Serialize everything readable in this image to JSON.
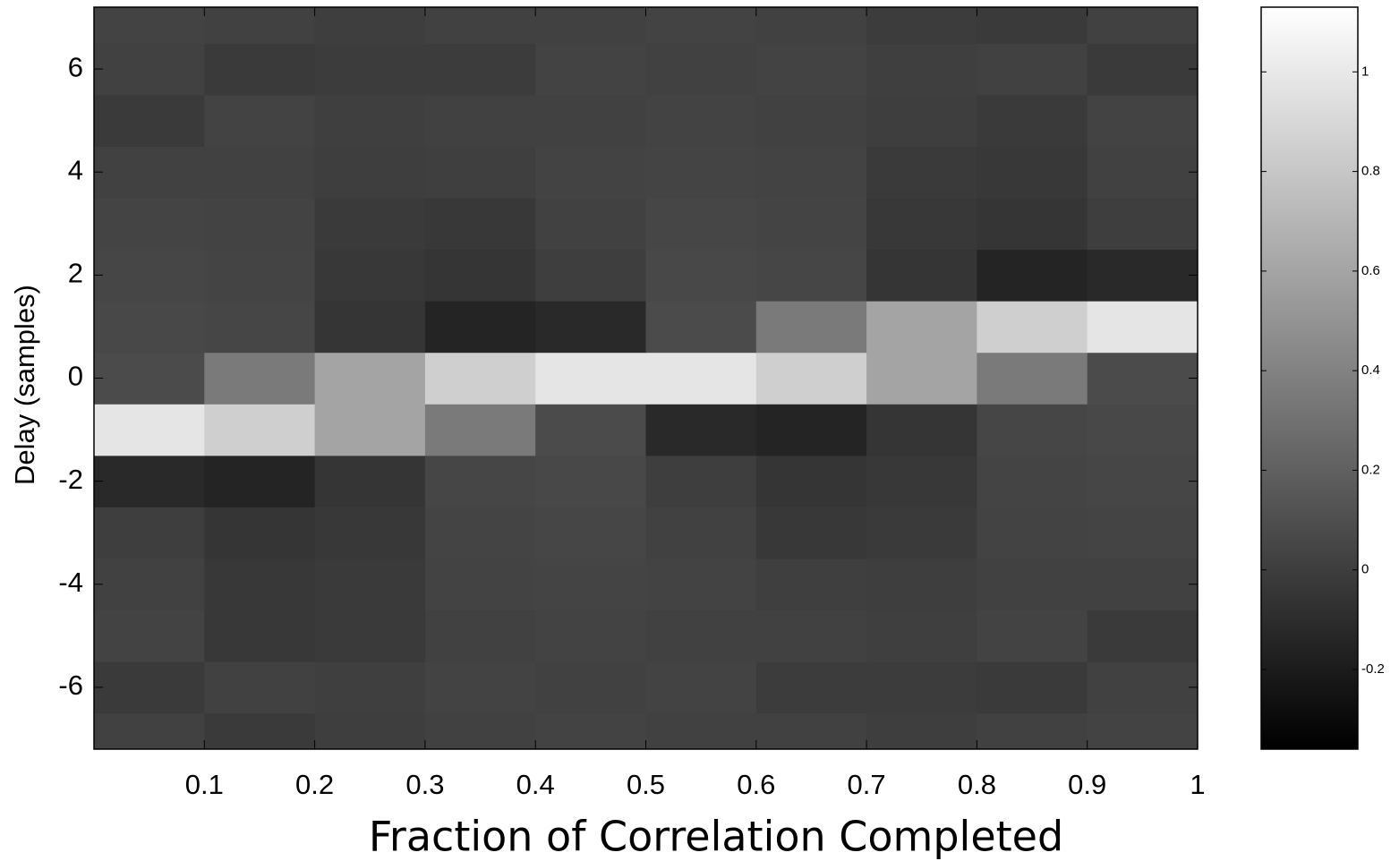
{
  "chart_data": {
    "type": "heatmap",
    "xlabel": "Fraction of Correlation Completed",
    "ylabel": "Delay (samples)",
    "colormap": "gray",
    "x": [
      0.05,
      0.15,
      0.25,
      0.35,
      0.45,
      0.55,
      0.65,
      0.75,
      0.85,
      0.95
    ],
    "y": [
      -7,
      -6,
      -5,
      -4,
      -3,
      -2,
      -1,
      0,
      1,
      2,
      3,
      4,
      5,
      6,
      7
    ],
    "values": [
      [
        0.02,
        -0.02,
        0.0,
        0.02,
        0.03,
        0.02,
        0.02,
        0.0,
        0.02,
        0.03
      ],
      [
        -0.02,
        0.02,
        0.01,
        0.03,
        0.02,
        0.03,
        -0.01,
        -0.01,
        -0.02,
        0.02
      ],
      [
        0.03,
        -0.03,
        -0.02,
        0.02,
        0.03,
        0.02,
        0.02,
        0.01,
        0.03,
        -0.02
      ],
      [
        0.02,
        -0.03,
        -0.02,
        0.03,
        0.04,
        0.03,
        0.01,
        0.0,
        0.02,
        0.02
      ],
      [
        0.0,
        -0.05,
        -0.03,
        0.04,
        0.05,
        0.02,
        -0.03,
        -0.02,
        0.03,
        0.04
      ],
      [
        -0.12,
        -0.15,
        -0.05,
        0.05,
        0.06,
        0.0,
        -0.05,
        -0.03,
        0.04,
        0.05
      ],
      [
        0.98,
        0.85,
        0.6,
        0.35,
        0.08,
        -0.12,
        -0.15,
        -0.05,
        0.05,
        0.06
      ],
      [
        0.08,
        0.35,
        0.6,
        0.85,
        0.98,
        0.98,
        0.85,
        0.6,
        0.35,
        0.08
      ],
      [
        0.06,
        0.05,
        -0.05,
        -0.15,
        -0.12,
        0.08,
        0.35,
        0.6,
        0.85,
        0.98
      ],
      [
        0.05,
        0.04,
        -0.03,
        -0.05,
        0.0,
        0.06,
        0.05,
        -0.05,
        -0.15,
        -0.12
      ],
      [
        0.04,
        0.03,
        -0.02,
        -0.03,
        0.02,
        0.05,
        0.04,
        -0.03,
        -0.05,
        0.0
      ],
      [
        0.02,
        0.02,
        0.0,
        0.01,
        0.03,
        0.04,
        0.03,
        -0.02,
        -0.03,
        0.02
      ],
      [
        -0.02,
        0.03,
        0.01,
        0.02,
        0.02,
        0.03,
        0.02,
        0.0,
        -0.02,
        0.03
      ],
      [
        0.02,
        -0.02,
        -0.01,
        -0.01,
        0.03,
        0.02,
        0.03,
        0.01,
        0.02,
        -0.02
      ],
      [
        0.03,
        0.02,
        0.0,
        0.02,
        0.02,
        0.03,
        0.02,
        -0.01,
        -0.02,
        0.02
      ]
    ],
    "xlim": [
      0,
      1
    ],
    "xticks": [
      0.1,
      0.2,
      0.3,
      0.4,
      0.5,
      0.6,
      0.7,
      0.8,
      0.9,
      1
    ],
    "ylim": [
      -7.2,
      7.2
    ],
    "yticks": [
      -6,
      -4,
      -2,
      0,
      2,
      4,
      6
    ],
    "colorbar": {
      "lim": [
        -0.36,
        1.13
      ],
      "ticks": [
        -0.2,
        0,
        0.2,
        0.4,
        0.6,
        0.8,
        1
      ]
    }
  }
}
